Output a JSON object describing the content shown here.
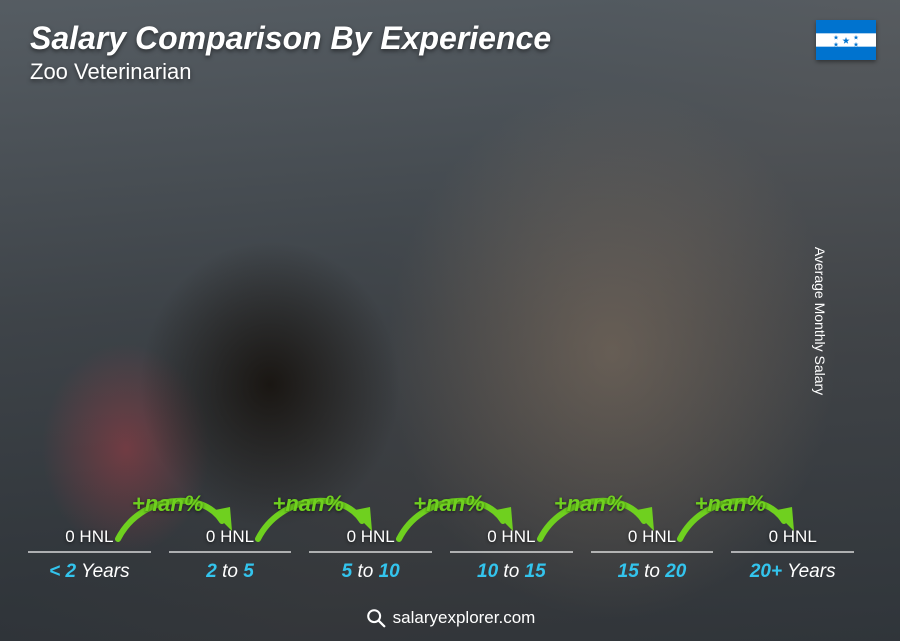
{
  "header": {
    "title": "Salary Comparison By Experience",
    "subtitle": "Zoo Veterinarian"
  },
  "flag": {
    "country": "Honduras",
    "stripe_color": "#0073cf",
    "star_color": "#0073cf",
    "bg_color": "#ffffff"
  },
  "y_axis_label": "Average Monthly Salary",
  "chart": {
    "type": "bar",
    "bar_color_top": "#3dcaf0",
    "bar_color_bottom": "#1ba7d6",
    "increase_color": "#6fd01f",
    "arrow_color": "#6fd01f",
    "x_label_accent_color": "#33c4ed",
    "value_text_color": "#ffffff",
    "bars": [
      {
        "category_pre": "< 2",
        "category_post": " Years",
        "value_label": "0 HNL",
        "height_pct": 30,
        "increase": null
      },
      {
        "category_pre": "2",
        "category_mid": " to ",
        "category_post2": "5",
        "value_label": "0 HNL",
        "height_pct": 40,
        "increase": "+nan%"
      },
      {
        "category_pre": "5",
        "category_mid": " to ",
        "category_post2": "10",
        "value_label": "0 HNL",
        "height_pct": 53,
        "increase": "+nan%"
      },
      {
        "category_pre": "10",
        "category_mid": " to ",
        "category_post2": "15",
        "value_label": "0 HNL",
        "height_pct": 67,
        "increase": "+nan%"
      },
      {
        "category_pre": "15",
        "category_mid": " to ",
        "category_post2": "20",
        "value_label": "0 HNL",
        "height_pct": 82,
        "increase": "+nan%"
      },
      {
        "category_pre": "20+",
        "category_post": " Years",
        "value_label": "0 HNL",
        "height_pct": 96,
        "increase": "+nan%"
      }
    ]
  },
  "footer": {
    "site": "salaryexplorer.com"
  }
}
